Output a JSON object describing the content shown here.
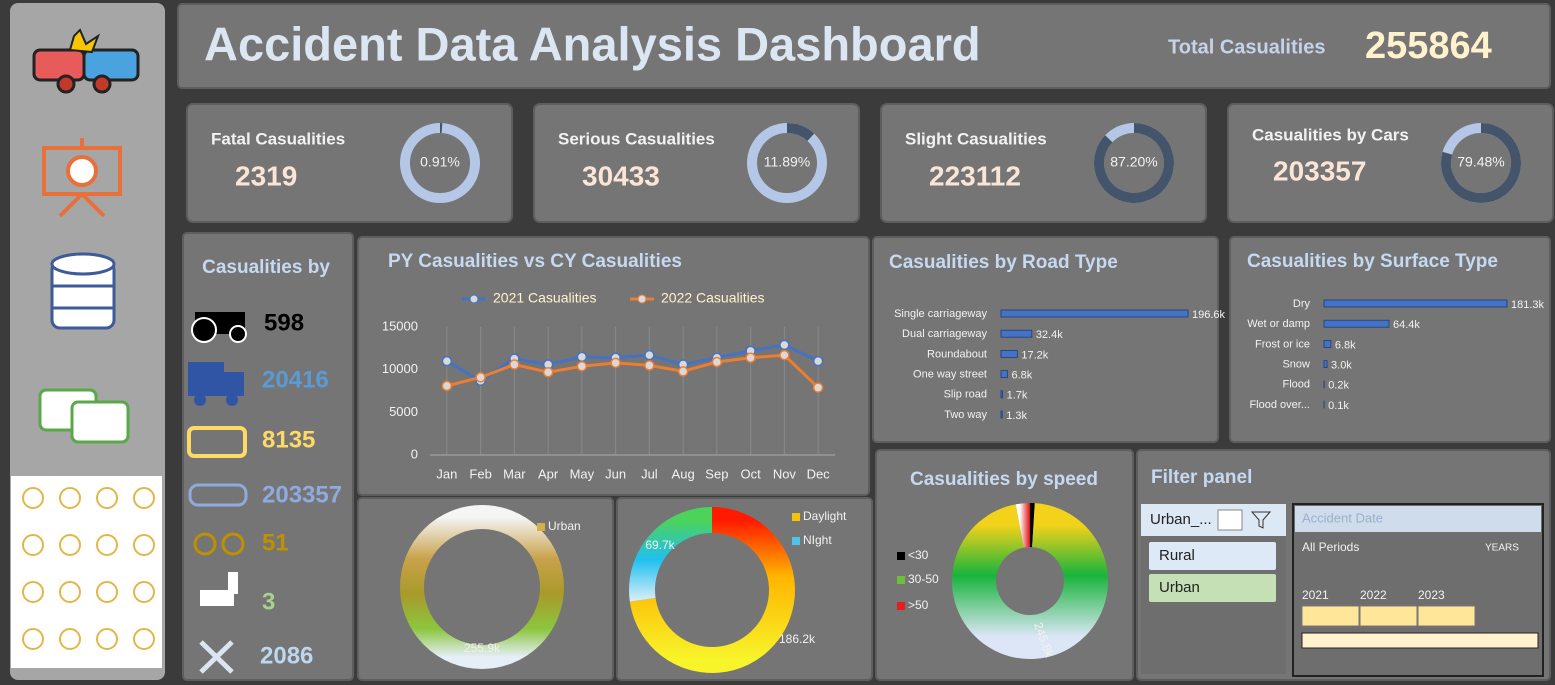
{
  "header": {
    "title": "Accident Data Analysis Dashboard",
    "total_label": "Total Casualities",
    "total_value": 255864
  },
  "kpis": [
    {
      "label": "Fatal Casualities",
      "value": 2319,
      "percent": 0.91,
      "percent_label": "0.91%"
    },
    {
      "label": "Serious Casualities",
      "value": 30433,
      "percent": 11.89,
      "percent_label": "11.89%"
    },
    {
      "label": "Slight Casualities",
      "value": 223112,
      "percent": 87.2,
      "percent_label": "87.20%"
    },
    {
      "label": "Casualities by Cars",
      "value": 203357,
      "percent": 79.48,
      "percent_label": "79.48%"
    }
  ],
  "vehicles": {
    "title": "Casualities by",
    "values": [
      598,
      20416,
      8135,
      203357,
      51,
      3,
      2086
    ]
  },
  "chart_data": [
    {
      "type": "line",
      "title": "PY Casualities vs CY Casualities",
      "categories": [
        "Jan",
        "Feb",
        "Mar",
        "Apr",
        "May",
        "Jun",
        "Jul",
        "Aug",
        "Sep",
        "Oct",
        "Nov",
        "Dec"
      ],
      "series": [
        {
          "name": "2021 Casualities",
          "color": "#4472c4",
          "values": [
            11000,
            8700,
            11300,
            10600,
            11500,
            11400,
            11700,
            10600,
            11400,
            12200,
            12900,
            11000
          ]
        },
        {
          "name": "2022 Casualities",
          "color": "#ed7d31",
          "values": [
            8100,
            9100,
            10600,
            9700,
            10400,
            10800,
            10500,
            9800,
            10900,
            11400,
            11700,
            7900
          ]
        }
      ],
      "ylim": [
        0,
        15000
      ],
      "yticks": [
        0,
        5000,
        10000,
        15000
      ]
    },
    {
      "type": "hbar",
      "title": "Casualities by Road Type",
      "color": "#4472c4",
      "categories": [
        "Single carriageway",
        "Dual carriageway",
        "Roundabout",
        "One way street",
        "Slip road",
        "Two way"
      ],
      "values": [
        196600,
        32400,
        17200,
        6800,
        1700,
        1300
      ],
      "value_labels": [
        "196.6k",
        "32.4k",
        "17.2k",
        "6.8k",
        "1.7k",
        "1.3k"
      ]
    },
    {
      "type": "hbar",
      "title": "Casualities by Surface Type",
      "color": "#4472c4",
      "categories": [
        "Dry",
        "Wet or damp",
        "Frost or ice",
        "Snow",
        "Flood",
        "Flood over..."
      ],
      "values": [
        181300,
        64400,
        6800,
        3000,
        200,
        100
      ],
      "value_labels": [
        "181.3k",
        "64.4k",
        "6.8k",
        "3.0k",
        "0.2k",
        "0.1k"
      ]
    },
    {
      "type": "donut",
      "categories": [
        "Urban"
      ],
      "values": [
        255900
      ],
      "value_labels": [
        "255.9k"
      ],
      "colors": [
        "#d4b04a"
      ]
    },
    {
      "type": "donut",
      "categories": [
        "Daylight",
        "NIght"
      ],
      "values": [
        186200,
        69700
      ],
      "value_labels": [
        "186.2k",
        "69.7k"
      ],
      "colors": [
        "#f4c20d",
        "#4fc3e8"
      ]
    },
    {
      "type": "donut",
      "title": "Casualities by speed",
      "categories": [
        "<30",
        "30-50",
        ">50"
      ],
      "values": [
        2500,
        245800,
        7500
      ],
      "value_labels": [
        null,
        "245.8k",
        null
      ],
      "colors": [
        "#000000",
        "#6dbf3c",
        "#e02020"
      ]
    }
  ],
  "filter": {
    "title": "Filter panel",
    "slicer": {
      "header": "Urban_...",
      "items": [
        "Rural",
        "Urban"
      ]
    },
    "timeline": {
      "header": "Accident Date",
      "period": "All Periods",
      "unit": "YEARS",
      "years": [
        2021,
        2022,
        2023
      ]
    }
  }
}
